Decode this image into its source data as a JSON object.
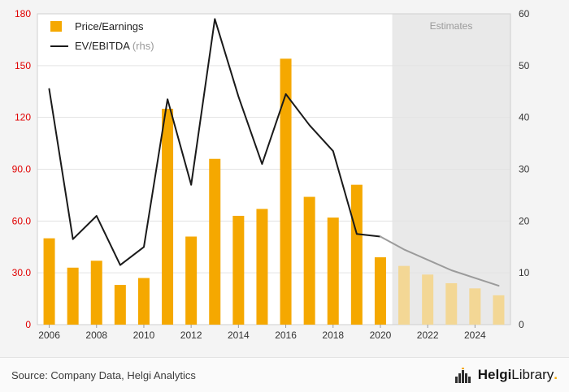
{
  "chart_data": {
    "type": "bar+line",
    "categories": [
      "2006",
      "2007",
      "2008",
      "2009",
      "2010",
      "2011",
      "2012",
      "2013",
      "2014",
      "2015",
      "2016",
      "2017",
      "2018",
      "2019",
      "2020",
      "2021",
      "2022",
      "2023",
      "2024",
      "2025"
    ],
    "series": [
      {
        "name": "Price/Earnings",
        "type": "bar",
        "axis": "left",
        "values": [
          50,
          33,
          37,
          23,
          27,
          125,
          51,
          96,
          63,
          67,
          154,
          74,
          62,
          81,
          39,
          34,
          29,
          24,
          21,
          17
        ]
      },
      {
        "name": "EV/EBITDA",
        "type": "line",
        "axis": "right",
        "values": [
          45.5,
          16.5,
          21,
          11.5,
          15,
          43.5,
          27,
          59,
          44,
          31,
          44.5,
          38.5,
          33.5,
          17.5,
          17,
          14.5,
          12.5,
          10.5,
          9,
          7.5
        ]
      }
    ],
    "estimates": {
      "label": "Estimates",
      "start_index": 15
    },
    "left_axis": {
      "min": 0,
      "max": 180,
      "ticks": [
        {
          "value": 0,
          "label": "0"
        },
        {
          "value": 30,
          "label": "30.0"
        },
        {
          "value": 60,
          "label": "60.0"
        },
        {
          "value": 90,
          "label": "90.0"
        },
        {
          "value": 120,
          "label": "120"
        },
        {
          "value": 150,
          "label": "150"
        },
        {
          "value": 180,
          "label": "180"
        }
      ]
    },
    "right_axis": {
      "min": 0,
      "max": 60,
      "ticks": [
        {
          "value": 0,
          "label": "0"
        },
        {
          "value": 10,
          "label": "10"
        },
        {
          "value": 20,
          "label": "20"
        },
        {
          "value": 30,
          "label": "30"
        },
        {
          "value": 40,
          "label": "40"
        },
        {
          "value": 50,
          "label": "50"
        },
        {
          "value": 60,
          "label": "60"
        }
      ]
    },
    "x_ticks": [
      {
        "index": 0,
        "label": "2006"
      },
      {
        "index": 2,
        "label": "2008"
      },
      {
        "index": 4,
        "label": "2010"
      },
      {
        "index": 6,
        "label": "2012"
      },
      {
        "index": 8,
        "label": "2014"
      },
      {
        "index": 10,
        "label": "2016"
      },
      {
        "index": 12,
        "label": "2018"
      },
      {
        "index": 14,
        "label": "2020"
      },
      {
        "index": 16,
        "label": "2022"
      },
      {
        "index": 18,
        "label": "2024"
      }
    ],
    "legend": [
      {
        "label": "Price/Earnings",
        "marker": "square"
      },
      {
        "label": "EV/EBITDA",
        "suffix": " (rhs)",
        "marker": "line"
      }
    ],
    "legend_position": "top-left",
    "grid": true,
    "colors": {
      "bar": "#f5a800",
      "bar_estimate": "#f3d795",
      "line": "#1a1a1a",
      "line_estimate": "#9b9b9b",
      "estimates_bg": "#e9e9e9",
      "left_axis_label": "#e00000",
      "right_axis_label": "#333333",
      "x_axis_label": "#333333",
      "grid": "#e3e3e3",
      "plot_border": "#cfcfcf"
    }
  },
  "footer": {
    "source": "Source: Company Data, Helgi Analytics",
    "logo": {
      "name_bold": "Helgi",
      "name_regular": "Library",
      "dot": "."
    }
  }
}
